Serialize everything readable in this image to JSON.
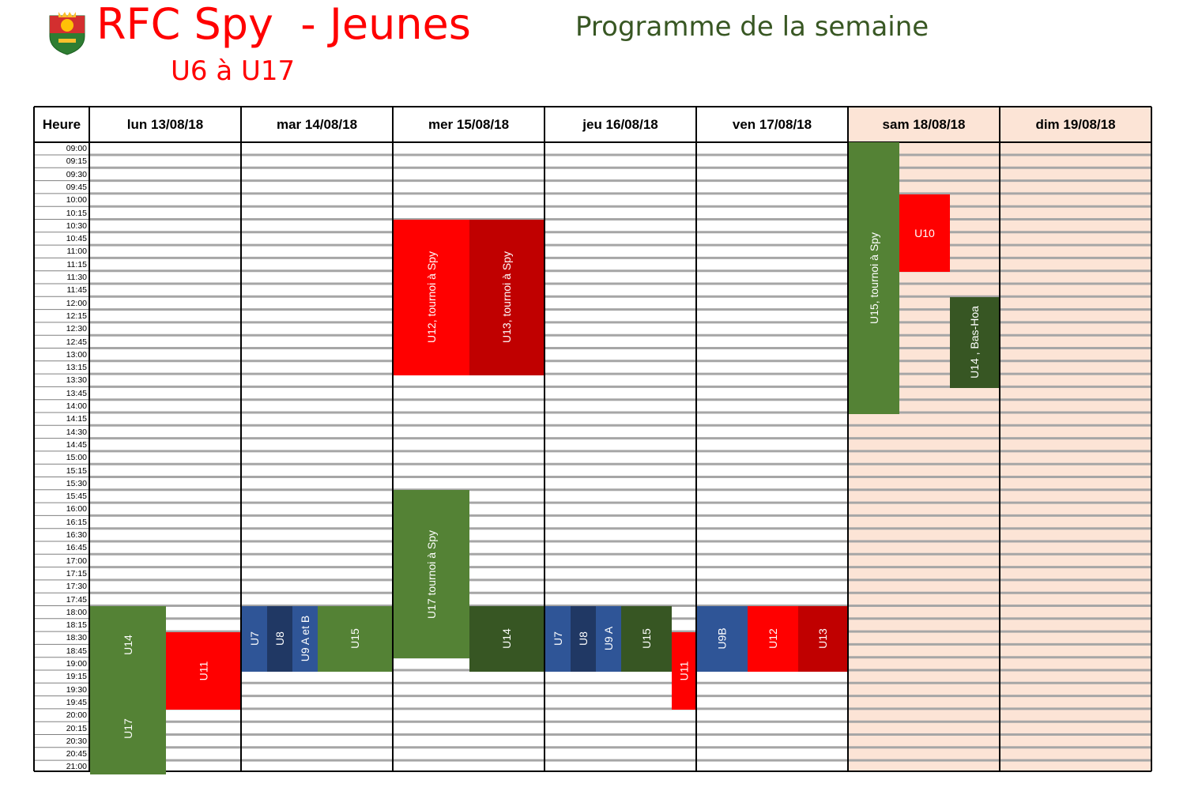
{
  "header": {
    "club_title": "RFC Spy  - Jeunes",
    "age_range": "U6 à U17",
    "programme": "Programme de la semaine",
    "logo_icon": "club-crest-icon"
  },
  "table": {
    "hour_header": "Heure",
    "days": [
      "lun 13/08/18",
      "mar 14/08/18",
      "mer 15/08/18",
      "jeu 16/08/18",
      "ven 17/08/18",
      "sam 18/08/18",
      "dim 19/08/18"
    ],
    "weekend_day_indices": [
      5,
      6
    ],
    "times": [
      "09:00",
      "09:15",
      "09:30",
      "09:45",
      "10:00",
      "10:15",
      "10:30",
      "10:45",
      "11:00",
      "11:15",
      "11:30",
      "11:45",
      "12:00",
      "12:15",
      "12:30",
      "12:45",
      "13:00",
      "13:15",
      "13:30",
      "13:45",
      "14:00",
      "14:15",
      "14:30",
      "14:45",
      "15:00",
      "15:15",
      "15:30",
      "15:45",
      "16:00",
      "16:15",
      "16:30",
      "16:45",
      "17:00",
      "17:15",
      "17:30",
      "17:45",
      "18:00",
      "18:15",
      "18:30",
      "18:45",
      "19:00",
      "19:15",
      "19:30",
      "19:45",
      "20:00",
      "20:15",
      "20:30",
      "20:45",
      "21:00"
    ]
  },
  "colors": {
    "red": "#ff0000",
    "dark_red": "#c00000",
    "green": "#548235",
    "dark_green": "#375623",
    "blue": "#2f5597",
    "navy": "#203864",
    "weekend_bg": "#fce4d6",
    "title_red": "#ff0000",
    "title_green": "#385723"
  },
  "events": [
    {
      "label": "U14",
      "day": 0,
      "start": "18:00",
      "end": "19:30",
      "lane": 0,
      "lanes": 2,
      "color": "#548235"
    },
    {
      "label": "U11",
      "day": 0,
      "start": "18:30",
      "end": "20:00",
      "lane": 1,
      "lanes": 2,
      "color": "#ff0000"
    },
    {
      "label": "U17",
      "day": 0,
      "start": "19:30",
      "end": "21:15",
      "lane": 0,
      "lanes": 2,
      "color": "#548235"
    },
    {
      "label": "U7",
      "day": 1,
      "start": "18:00",
      "end": "19:15",
      "lane": 0,
      "lanes": 6,
      "color": "#2f5597"
    },
    {
      "label": "U8",
      "day": 1,
      "start": "18:00",
      "end": "19:15",
      "lane": 1,
      "lanes": 6,
      "color": "#203864"
    },
    {
      "label": "U9 A et B",
      "day": 1,
      "start": "18:00",
      "end": "19:15",
      "lane": 2,
      "lanes": 6,
      "color": "#2f5597"
    },
    {
      "label": "U15",
      "day": 1,
      "start": "18:00",
      "end": "19:15",
      "lane": 3,
      "lanes": 6,
      "span": 3,
      "color": "#548235"
    },
    {
      "label": "U12, tournoi à Spy",
      "day": 2,
      "start": "10:30",
      "end": "13:30",
      "lane": 0,
      "lanes": 2,
      "color": "#ff0000"
    },
    {
      "label": "U13, tournoi à Spy",
      "day": 2,
      "start": "10:30",
      "end": "13:30",
      "lane": 1,
      "lanes": 2,
      "color": "#c00000"
    },
    {
      "label": "U17 tournoi à Spy",
      "day": 2,
      "start": "15:45",
      "end": "19:00",
      "lane": 0,
      "lanes": 2,
      "color": "#548235"
    },
    {
      "label": "U14",
      "day": 2,
      "start": "18:00",
      "end": "19:15",
      "lane": 1,
      "lanes": 2,
      "color": "#375623"
    },
    {
      "label": "U7",
      "day": 3,
      "start": "18:00",
      "end": "19:15",
      "lane": 0,
      "lanes": 6,
      "color": "#2f5597"
    },
    {
      "label": "U8",
      "day": 3,
      "start": "18:00",
      "end": "19:15",
      "lane": 1,
      "lanes": 6,
      "color": "#203864"
    },
    {
      "label": "U9 A",
      "day": 3,
      "start": "18:00",
      "end": "19:15",
      "lane": 2,
      "lanes": 6,
      "color": "#2f5597"
    },
    {
      "label": "U15",
      "day": 3,
      "start": "18:00",
      "end": "19:15",
      "lane": 3,
      "lanes": 6,
      "span": 2,
      "color": "#375623"
    },
    {
      "label": "U11",
      "day": 3,
      "start": "18:30",
      "end": "20:00",
      "lane": 5,
      "lanes": 6,
      "color": "#ff0000"
    },
    {
      "label": "U9B",
      "day": 4,
      "start": "18:00",
      "end": "19:15",
      "lane": 0,
      "lanes": 3,
      "color": "#2f5597"
    },
    {
      "label": "U12",
      "day": 4,
      "start": "18:00",
      "end": "19:15",
      "lane": 1,
      "lanes": 3,
      "color": "#ff0000"
    },
    {
      "label": "U13",
      "day": 4,
      "start": "18:00",
      "end": "19:15",
      "lane": 2,
      "lanes": 3,
      "color": "#c00000"
    },
    {
      "label": "U15, tournoi à Spy",
      "day": 5,
      "start": "09:00",
      "end": "14:15",
      "lane": 0,
      "lanes": 3,
      "color": "#548235"
    },
    {
      "label": "U10",
      "day": 5,
      "start": "10:00",
      "end": "11:30",
      "lane": 1,
      "lanes": 3,
      "color": "#ff0000",
      "horizontal": true
    },
    {
      "label": "U14 , Bas-Hoa",
      "day": 5,
      "start": "12:00",
      "end": "13:45",
      "lane": 2,
      "lanes": 3,
      "color": "#375623"
    }
  ]
}
